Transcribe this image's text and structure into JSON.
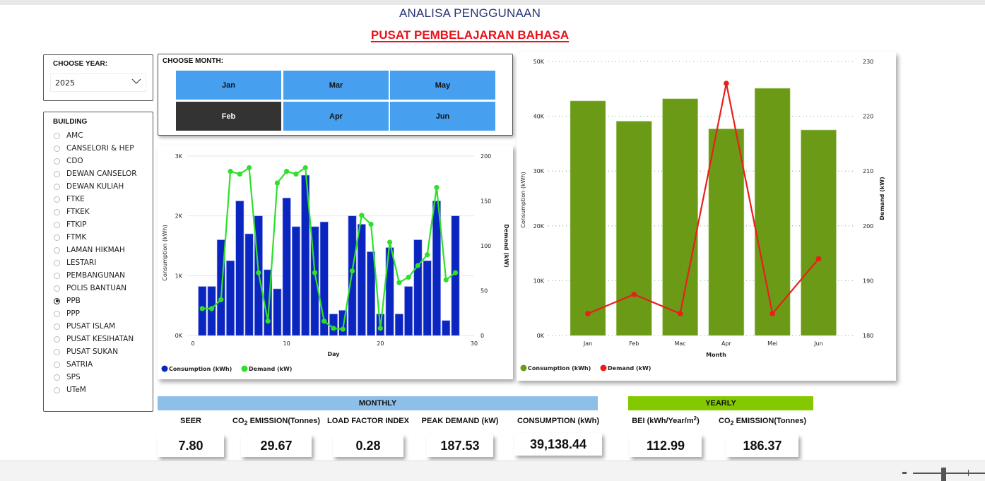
{
  "header": {
    "title": "ANALISA PENGGUNAAN",
    "subtitle": "PUSAT PEMBELAJARAN BAHASA"
  },
  "year_filter": {
    "label": "CHOOSE YEAR:",
    "selected": "2025",
    "icon": "chevron-down-icon"
  },
  "building_filter": {
    "label": "BUILDING",
    "options": [
      "AMC",
      "CANSELORI & HEP",
      "CDO",
      "DEWAN CANSELOR",
      "DEWAN KULIAH",
      "FTKE",
      "FTKEK",
      "FTKIP",
      "FTMK",
      "LAMAN HIKMAH",
      "LESTARI",
      "PEMBANGUNAN",
      "POLIS BANTUAN",
      "PPB",
      "PPP",
      "PUSAT ISLAM",
      "PUSAT KESIHATAN",
      "PUSAT SUKAN",
      "SATRIA",
      "SPS",
      "UTeM"
    ],
    "selected": "PPB"
  },
  "month_filter": {
    "label": "CHOOSE MONTH:",
    "buttons": [
      "Jan",
      "Mar",
      "May",
      "Feb",
      "Apr",
      "Jun"
    ],
    "selected": "Feb"
  },
  "colors": {
    "daily_bar": "#0b26c0",
    "daily_line": "#2ee02a",
    "monthly_bar": "#6b9a16",
    "monthly_line": "#e8201a",
    "monthly_header": "#8ebfe9",
    "yearly_header": "#84c800",
    "month_button": "#47a0ef",
    "month_button_selected": "#333333"
  },
  "chart_data": [
    {
      "type": "bar",
      "title": "",
      "xlabel": "Day",
      "ylabel": "Consumption (kWh)",
      "y2label": "Demand (kW)",
      "x": [
        1,
        2,
        3,
        4,
        5,
        6,
        7,
        8,
        9,
        10,
        11,
        12,
        13,
        14,
        15,
        16,
        17,
        18,
        19,
        20,
        21,
        22,
        23,
        24,
        25,
        26,
        27,
        28
      ],
      "xlim": [
        0,
        30
      ],
      "xticks": [
        "0",
        "10",
        "20",
        "30"
      ],
      "ylim": [
        0,
        3000
      ],
      "yticks": [
        "0K",
        "1K",
        "2K",
        "3K"
      ],
      "y2lim": [
        0,
        200
      ],
      "y2ticks": [
        "0",
        "50",
        "100",
        "150",
        "200"
      ],
      "series": [
        {
          "name": "Consumption (kWh)",
          "type": "bar",
          "axis": "left",
          "values": [
            820,
            820,
            1600,
            1250,
            2250,
            1700,
            2000,
            1100,
            780,
            2300,
            1820,
            2680,
            1820,
            1900,
            360,
            420,
            2000,
            1860,
            1400,
            360,
            1470,
            360,
            820,
            1600,
            1250,
            2250,
            250,
            2000
          ]
        },
        {
          "name": "Demand (kW)",
          "type": "line",
          "axis": "right",
          "values": [
            30,
            30,
            40,
            183,
            180,
            187,
            70,
            16,
            170,
            183,
            180,
            187,
            70,
            16,
            8,
            7,
            72,
            134,
            124,
            8,
            104,
            59,
            65,
            78,
            90,
            165,
            62,
            70
          ]
        }
      ],
      "legend": [
        "Consumption (kWh)",
        "Demand (kW)"
      ],
      "legend_position": "bottom-left"
    },
    {
      "type": "bar",
      "title": "",
      "xlabel": "Month",
      "ylabel": "Consumption (kWh)",
      "y2label": "Demand (kW)",
      "categories": [
        "Jan",
        "Feb",
        "Mac",
        "Apr",
        "Mei",
        "Jun"
      ],
      "ylim": [
        0,
        50000
      ],
      "yticks": [
        "0K",
        "10K",
        "20K",
        "30K",
        "40K",
        "50K"
      ],
      "y2lim": [
        180,
        230
      ],
      "y2ticks": [
        "180",
        "190",
        "200",
        "210",
        "220",
        "230"
      ],
      "series": [
        {
          "name": "Consumption (kWh)",
          "type": "bar",
          "axis": "left",
          "values": [
            42800,
            39100,
            43200,
            37700,
            45100,
            37500
          ]
        },
        {
          "name": "Demand (kW)",
          "type": "line",
          "axis": "right",
          "values": [
            184,
            187.5,
            184,
            226,
            184,
            194
          ]
        }
      ],
      "legend": [
        "Consumption (kWh)",
        "Demand (kW)"
      ],
      "legend_position": "bottom-left"
    }
  ],
  "monthly": {
    "header": "MONTHLY",
    "kpis": [
      {
        "label_pre": "",
        "label": "SEER",
        "value": "7.80"
      },
      {
        "label_pre": "CO",
        "label_sub": "2",
        "label": " EMISSION(Tonnes)",
        "value": "29.67"
      },
      {
        "label_pre": "",
        "label": "LOAD FACTOR INDEX",
        "value": "0.28"
      },
      {
        "label_pre": "",
        "label": "PEAK DEMAND (kW)",
        "value": "187.53"
      },
      {
        "label_pre": "",
        "label": "CONSUMPTION (kWh)",
        "value": "39,138.44"
      }
    ]
  },
  "yearly": {
    "header": "YEARLY",
    "kpis": [
      {
        "label": "BEI (kWh/Year/m",
        "label_sup": "2",
        "label_post": ")",
        "value": "112.99"
      },
      {
        "label_pre": "CO",
        "label_sub": "2",
        "label": " EMISSION(Tonnes)",
        "value": "186.37"
      }
    ]
  },
  "zoom_control": {
    "minus": "-",
    "plus": "+"
  }
}
